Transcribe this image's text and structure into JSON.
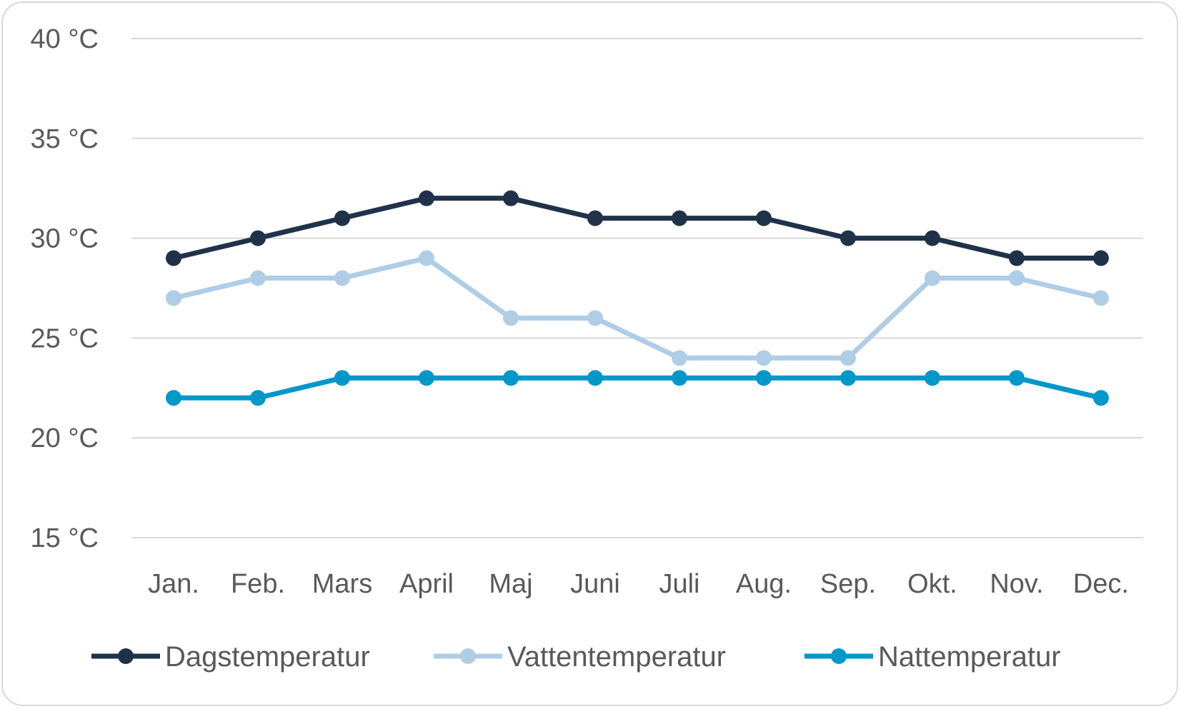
{
  "chart_data": {
    "type": "line",
    "title": "",
    "xlabel": "",
    "ylabel": "",
    "categories": [
      "Jan.",
      "Feb.",
      "Mars",
      "April",
      "Maj",
      "Juni",
      "Juli",
      "Aug.",
      "Sep.",
      "Okt.",
      "Nov.",
      "Dec."
    ],
    "y_ticks": [
      "15 °C",
      "20 °C",
      "25 °C",
      "30 °C",
      "35 °C",
      "40 °C"
    ],
    "y_tick_values": [
      15,
      20,
      25,
      30,
      35,
      40
    ],
    "ylim": [
      15,
      40
    ],
    "grid": true,
    "legend_position": "bottom",
    "series": [
      {
        "name": "Dagstemperatur",
        "color": "#203249",
        "values": [
          29,
          30,
          31,
          32,
          32,
          31,
          31,
          31,
          30,
          30,
          29,
          29
        ]
      },
      {
        "name": "Vattentemperatur",
        "color": "#b0cde6",
        "values": [
          27,
          28,
          28,
          29,
          26,
          26,
          24,
          24,
          24,
          28,
          28,
          27
        ]
      },
      {
        "name": "Nattemperatur",
        "color": "#0097c9",
        "values": [
          22,
          22,
          23,
          23,
          23,
          23,
          23,
          23,
          23,
          23,
          23,
          22
        ]
      }
    ]
  }
}
